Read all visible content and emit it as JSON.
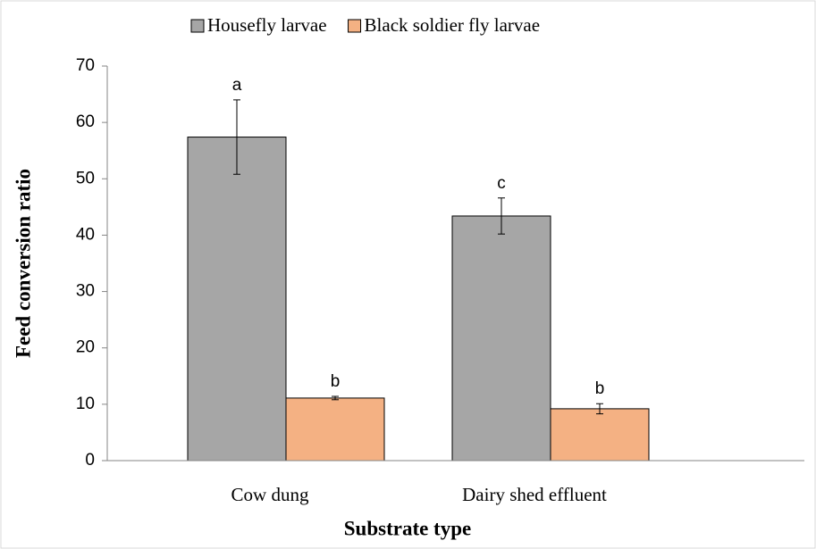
{
  "chart_data": {
    "type": "bar",
    "x_label": "Substrate type",
    "y_label": "Feed conversion ratio",
    "categories": [
      "Cow dung",
      "Dairy shed effluent"
    ],
    "series": [
      {
        "name": "Housefly larvae",
        "color": "#a6a6a6",
        "values": [
          57.4,
          43.4
        ],
        "errors": [
          6.6,
          3.2
        ],
        "labels": [
          "a",
          "c"
        ]
      },
      {
        "name": "Black soldier fly larvae",
        "color": "#f4b183",
        "values": [
          11.1,
          9.2
        ],
        "errors": [
          0.3,
          0.9
        ],
        "labels": [
          "b",
          "b"
        ]
      }
    ],
    "ylim": [
      0,
      70
    ],
    "yticks": [
      0,
      10,
      20,
      30,
      40,
      50,
      60,
      70
    ],
    "grid": false,
    "legend": "top"
  }
}
